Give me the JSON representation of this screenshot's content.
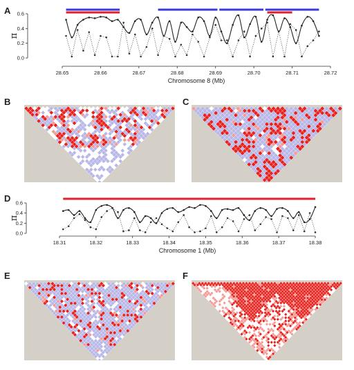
{
  "panel_labels": {
    "a": "A",
    "b": "B",
    "c": "C",
    "d": "D",
    "e": "E",
    "f": "F"
  },
  "colors": {
    "ld_red": "#e8211d",
    "ld_light_red": "#f59a95",
    "ld_lavender": "#b7b7e8",
    "ld_white": "#ffffff",
    "background_gray": "#d4d0c8",
    "bar_blue": "#3a3ad4",
    "bar_red": "#e0202a"
  },
  "chart_data": [
    {
      "id": "A",
      "type": "line",
      "xlabel": "Chromosome 8 (Mb)",
      "ylabel": "π",
      "xlim": [
        28.65,
        28.72
      ],
      "ylim": [
        0,
        0.6
      ],
      "xticks": [
        "28.65",
        "28.66",
        "28.67",
        "28.68",
        "28.69",
        "28.70",
        "28.71",
        "28.72"
      ],
      "yticks": [
        "0.0",
        "0.2",
        "0.4",
        "0.6"
      ],
      "highlight_bars": [
        {
          "color": "blue",
          "from": 28.651,
          "to": 28.665
        },
        {
          "color": "red",
          "from": 28.651,
          "to": 28.665
        },
        {
          "color": "blue",
          "from": 28.675,
          "to": 28.6905
        },
        {
          "color": "blue",
          "from": 28.691,
          "to": 28.7025
        },
        {
          "color": "blue",
          "from": 28.703,
          "to": 28.717
        },
        {
          "color": "red",
          "from": 28.7035,
          "to": 28.71
        }
      ],
      "series": [
        {
          "style": "solid",
          "x": [
            28.651,
            28.6525,
            28.654,
            28.6555,
            28.657,
            28.6585,
            28.66,
            28.6615,
            28.663,
            28.6645,
            28.666,
            28.6675,
            28.669,
            28.6705,
            28.672,
            28.6735,
            28.675,
            28.6765,
            28.678,
            28.6795,
            28.681,
            28.6825,
            28.684,
            28.6855,
            28.687,
            28.6885,
            28.69,
            28.6915,
            28.693,
            28.6945,
            28.696,
            28.6975,
            28.699,
            28.7005,
            28.702,
            28.7035,
            28.705,
            28.7065,
            28.708,
            28.7095,
            28.711,
            28.7125,
            28.714,
            28.7155,
            28.717
          ],
          "y": [
            0.52,
            0.28,
            0.45,
            0.52,
            0.55,
            0.54,
            0.56,
            0.55,
            0.5,
            0.52,
            0.42,
            0.34,
            0.5,
            0.52,
            0.32,
            0.48,
            0.55,
            0.3,
            0.5,
            0.22,
            0.48,
            0.42,
            0.36,
            0.55,
            0.5,
            0.3,
            0.55,
            0.36,
            0.2,
            0.45,
            0.58,
            0.28,
            0.46,
            0.56,
            0.22,
            0.52,
            0.58,
            0.36,
            0.54,
            0.42,
            0.2,
            0.44,
            0.56,
            0.5,
            0.3
          ]
        },
        {
          "style": "dotted",
          "x": [
            28.651,
            28.6525,
            28.654,
            28.6555,
            28.657,
            28.6585,
            28.66,
            28.6615,
            28.663,
            28.6645,
            28.666,
            28.6675,
            28.669,
            28.6705,
            28.672,
            28.6735,
            28.675,
            28.6765,
            28.678,
            28.6795,
            28.681,
            28.6825,
            28.684,
            28.6855,
            28.687,
            28.6885,
            28.69,
            28.6915,
            28.693,
            28.6945,
            28.696,
            28.6975,
            28.699,
            28.7005,
            28.702,
            28.7035,
            28.705,
            28.7065,
            28.708,
            28.7095,
            28.711,
            28.7125,
            28.714,
            28.7155,
            28.717
          ],
          "y": [
            0.3,
            0.02,
            0.38,
            0.1,
            0.35,
            0.04,
            0.3,
            0.28,
            0.02,
            0.02,
            0.48,
            0.06,
            0.32,
            0.02,
            0.15,
            0.4,
            0.04,
            0.3,
            0.26,
            0.02,
            0.18,
            0.04,
            0.32,
            0.22,
            0.02,
            0.28,
            0.45,
            0.24,
            0.24,
            0.02,
            0.24,
            0.36,
            0.02,
            0.3,
            0.4,
            0.48,
            0.02,
            0.36,
            0.02,
            0.46,
            0.38,
            0.02,
            0.16,
            0.24,
            0.36
          ]
        }
      ]
    },
    {
      "id": "D",
      "type": "line",
      "xlabel": "Chromosome 1 (Mb)",
      "ylabel": "π",
      "xlim": [
        18.31,
        18.38
      ],
      "ylim": [
        0,
        0.6
      ],
      "xticks": [
        "18.31",
        "18.32",
        "18.33",
        "18.34",
        "18.35",
        "18.36",
        "18.37",
        "18.38"
      ],
      "yticks": [
        "0.0",
        "0.2",
        "0.4",
        "0.6"
      ],
      "highlight_bars": [
        {
          "color": "red",
          "from": 18.311,
          "to": 18.38
        }
      ],
      "series": [
        {
          "style": "solid",
          "x": [
            18.311,
            18.3125,
            18.314,
            18.3155,
            18.317,
            18.3185,
            18.32,
            18.3215,
            18.323,
            18.3245,
            18.326,
            18.3275,
            18.329,
            18.3305,
            18.332,
            18.3335,
            18.335,
            18.3365,
            18.338,
            18.3395,
            18.341,
            18.3425,
            18.344,
            18.3455,
            18.347,
            18.3485,
            18.35,
            18.3515,
            18.353,
            18.3545,
            18.356,
            18.3575,
            18.359,
            18.3605,
            18.362,
            18.3635,
            18.365,
            18.3665,
            18.368,
            18.3695,
            18.371,
            18.3725,
            18.374,
            18.3755,
            18.377,
            18.3785,
            18.38
          ],
          "y": [
            0.44,
            0.46,
            0.36,
            0.44,
            0.3,
            0.22,
            0.46,
            0.54,
            0.56,
            0.5,
            0.3,
            0.46,
            0.5,
            0.42,
            0.22,
            0.34,
            0.3,
            0.2,
            0.4,
            0.48,
            0.5,
            0.42,
            0.46,
            0.52,
            0.5,
            0.56,
            0.54,
            0.44,
            0.3,
            0.46,
            0.48,
            0.46,
            0.5,
            0.36,
            0.26,
            0.44,
            0.5,
            0.46,
            0.34,
            0.48,
            0.5,
            0.44,
            0.3,
            0.42,
            0.22,
            0.28,
            0.52
          ]
        },
        {
          "style": "dotted",
          "x": [
            18.311,
            18.3125,
            18.314,
            18.3155,
            18.317,
            18.3185,
            18.32,
            18.3215,
            18.323,
            18.3245,
            18.326,
            18.3275,
            18.329,
            18.3305,
            18.332,
            18.3335,
            18.335,
            18.3365,
            18.338,
            18.3395,
            18.341,
            18.3425,
            18.344,
            18.3455,
            18.347,
            18.3485,
            18.35,
            18.3515,
            18.353,
            18.3545,
            18.356,
            18.3575,
            18.359,
            18.3605,
            18.362,
            18.3635,
            18.365,
            18.3665,
            18.368,
            18.3695,
            18.371,
            18.3725,
            18.374,
            18.3755,
            18.377,
            18.3785,
            18.38
          ],
          "y": [
            0.08,
            0.14,
            0.3,
            0.38,
            0.26,
            0.12,
            0.08,
            0.32,
            0.44,
            0.5,
            0.42,
            0.04,
            0.06,
            0.3,
            0.06,
            0.02,
            0.22,
            0.3,
            0.18,
            0.1,
            0.04,
            0.22,
            0.36,
            0.12,
            0.02,
            0.04,
            0.1,
            0.34,
            0.02,
            0.12,
            0.3,
            0.24,
            0.04,
            0.28,
            0.36,
            0.06,
            0.18,
            0.32,
            0.28,
            0.02,
            0.34,
            0.3,
            0.06,
            0.36,
            0.04,
            0.4,
            0.02
          ]
        }
      ]
    },
    {
      "id": "B",
      "type": "heatmap",
      "pattern": "sparse-red-on-white-lavender"
    },
    {
      "id": "C",
      "type": "heatmap",
      "pattern": "lavender-with-red-blocks"
    },
    {
      "id": "E",
      "type": "heatmap",
      "pattern": "lavender-sparse-red"
    },
    {
      "id": "F",
      "type": "heatmap",
      "pattern": "solid-red-blocks"
    }
  ]
}
